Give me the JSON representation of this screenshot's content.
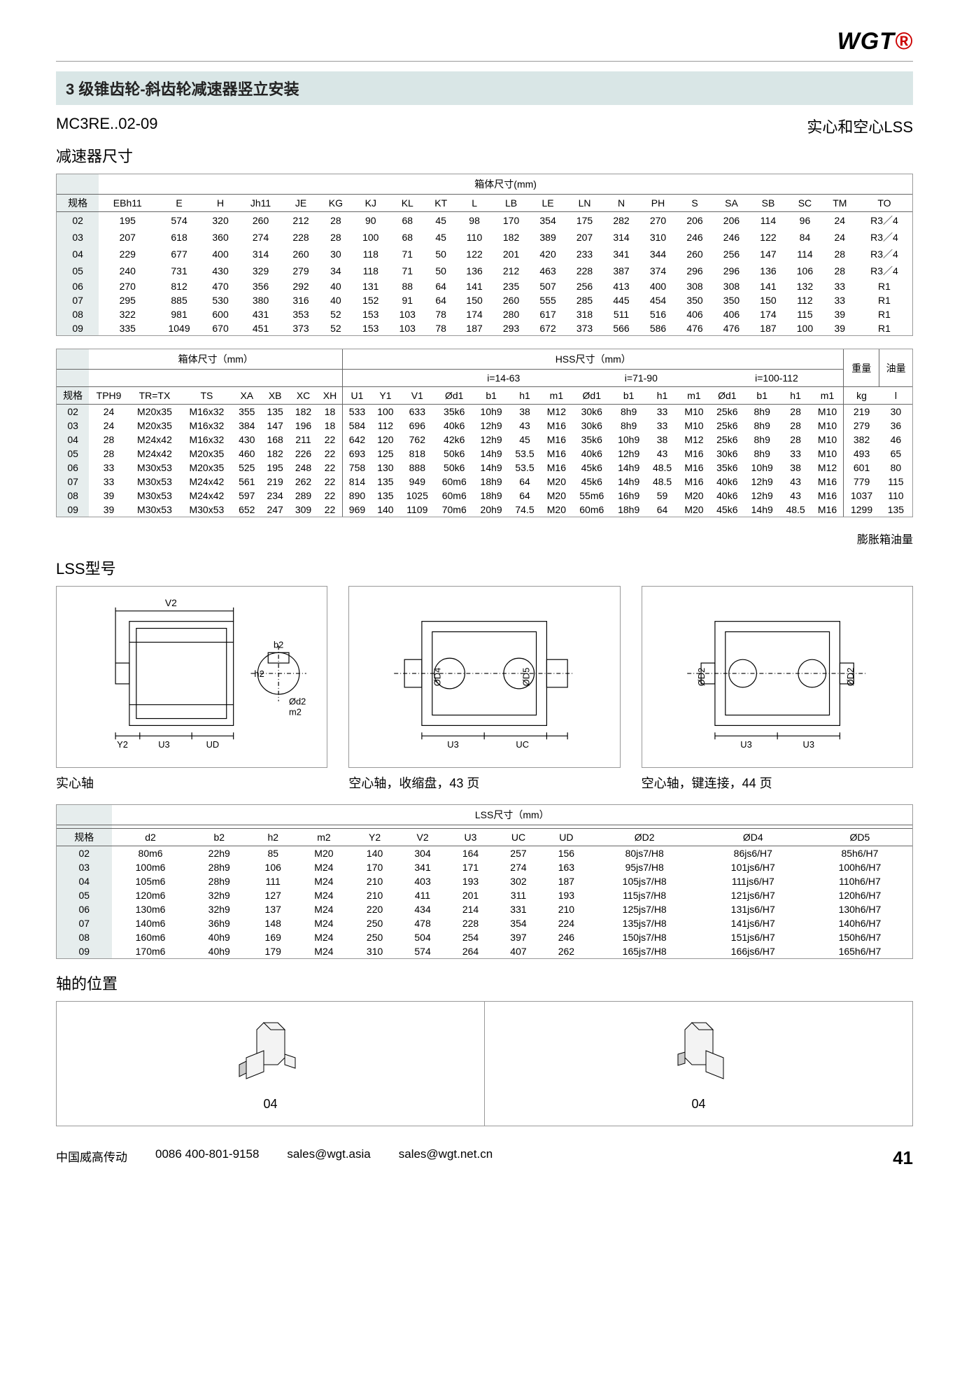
{
  "logo": {
    "main": "WGT",
    "dot": "®"
  },
  "title": "3 级锥齿轮-斜齿轮减速器竖立安装",
  "model": "MC3RE..02-09",
  "right_label": "实心和空心LSS",
  "sub_title": "减速器尺寸",
  "table1": {
    "header_center": "箱体尺寸(mm)",
    "cols": [
      "规格",
      "EBh11",
      "E",
      "H",
      "Jh11",
      "JE",
      "KG",
      "KJ",
      "KL",
      "KT",
      "L",
      "LB",
      "LE",
      "LN",
      "N",
      "PH",
      "S",
      "SA",
      "SB",
      "SC",
      "TM",
      "TO"
    ],
    "rows": [
      [
        "02",
        "195",
        "574",
        "320",
        "260",
        "212",
        "28",
        "90",
        "68",
        "45",
        "98",
        "170",
        "354",
        "175",
        "282",
        "270",
        "206",
        "206",
        "114",
        "96",
        "24",
        "R3／4"
      ],
      [
        "03",
        "207",
        "618",
        "360",
        "274",
        "228",
        "28",
        "100",
        "68",
        "45",
        "110",
        "182",
        "389",
        "207",
        "314",
        "310",
        "246",
        "246",
        "122",
        "84",
        "24",
        "R3／4"
      ],
      [
        "04",
        "229",
        "677",
        "400",
        "314",
        "260",
        "30",
        "118",
        "71",
        "50",
        "122",
        "201",
        "420",
        "233",
        "341",
        "344",
        "260",
        "256",
        "147",
        "114",
        "28",
        "R3／4"
      ],
      [
        "05",
        "240",
        "731",
        "430",
        "329",
        "279",
        "34",
        "118",
        "71",
        "50",
        "136",
        "212",
        "463",
        "228",
        "387",
        "374",
        "296",
        "296",
        "136",
        "106",
        "28",
        "R3／4"
      ],
      [
        "06",
        "270",
        "812",
        "470",
        "356",
        "292",
        "40",
        "131",
        "88",
        "64",
        "141",
        "235",
        "507",
        "256",
        "413",
        "400",
        "308",
        "308",
        "141",
        "132",
        "33",
        "R1"
      ],
      [
        "07",
        "295",
        "885",
        "530",
        "380",
        "316",
        "40",
        "152",
        "91",
        "64",
        "150",
        "260",
        "555",
        "285",
        "445",
        "454",
        "350",
        "350",
        "150",
        "112",
        "33",
        "R1"
      ],
      [
        "08",
        "322",
        "981",
        "600",
        "431",
        "353",
        "52",
        "153",
        "103",
        "78",
        "174",
        "280",
        "617",
        "318",
        "511",
        "516",
        "406",
        "406",
        "174",
        "115",
        "39",
        "R1"
      ],
      [
        "09",
        "335",
        "1049",
        "670",
        "451",
        "373",
        "52",
        "153",
        "103",
        "78",
        "187",
        "293",
        "672",
        "373",
        "566",
        "586",
        "476",
        "476",
        "187",
        "100",
        "39",
        "R1"
      ]
    ]
  },
  "table2": {
    "left_header": "箱体尺寸（mm）",
    "right_header": "HSS尺寸（mm）",
    "weight_header": "重量",
    "oil_header": "油量",
    "sub_headers": {
      "i1": "i=14-63",
      "i2": "i=71-90",
      "i3": "i=100-112"
    },
    "cols_left": [
      "规格",
      "TPH9",
      "TR=TX",
      "TS",
      "XA",
      "XB",
      "XC",
      "XH"
    ],
    "cols_mid": [
      "U1",
      "Y1",
      "V1"
    ],
    "cols_i": [
      "Ød1",
      "b1",
      "h1",
      "m1"
    ],
    "cols_right": [
      "kg",
      "l"
    ],
    "rows": [
      [
        "02",
        "24",
        "M20x35",
        "M16x32",
        "355",
        "135",
        "182",
        "18",
        "533",
        "100",
        "633",
        "35k6",
        "10h9",
        "38",
        "M12",
        "30k6",
        "8h9",
        "33",
        "M10",
        "25k6",
        "8h9",
        "28",
        "M10",
        "219",
        "30"
      ],
      [
        "03",
        "24",
        "M20x35",
        "M16x32",
        "384",
        "147",
        "196",
        "18",
        "584",
        "112",
        "696",
        "40k6",
        "12h9",
        "43",
        "M16",
        "30k6",
        "8h9",
        "33",
        "M10",
        "25k6",
        "8h9",
        "28",
        "M10",
        "279",
        "36"
      ],
      [
        "04",
        "28",
        "M24x42",
        "M16x32",
        "430",
        "168",
        "211",
        "22",
        "642",
        "120",
        "762",
        "42k6",
        "12h9",
        "45",
        "M16",
        "35k6",
        "10h9",
        "38",
        "M12",
        "25k6",
        "8h9",
        "28",
        "M10",
        "382",
        "46"
      ],
      [
        "05",
        "28",
        "M24x42",
        "M20x35",
        "460",
        "182",
        "226",
        "22",
        "693",
        "125",
        "818",
        "50k6",
        "14h9",
        "53.5",
        "M16",
        "40k6",
        "12h9",
        "43",
        "M16",
        "30k6",
        "8h9",
        "33",
        "M10",
        "493",
        "65"
      ],
      [
        "06",
        "33",
        "M30x53",
        "M20x35",
        "525",
        "195",
        "248",
        "22",
        "758",
        "130",
        "888",
        "50k6",
        "14h9",
        "53.5",
        "M16",
        "45k6",
        "14h9",
        "48.5",
        "M16",
        "35k6",
        "10h9",
        "38",
        "M12",
        "601",
        "80"
      ],
      [
        "07",
        "33",
        "M30x53",
        "M24x42",
        "561",
        "219",
        "262",
        "22",
        "814",
        "135",
        "949",
        "60m6",
        "18h9",
        "64",
        "M20",
        "45k6",
        "14h9",
        "48.5",
        "M16",
        "40k6",
        "12h9",
        "43",
        "M16",
        "779",
        "115"
      ],
      [
        "08",
        "39",
        "M30x53",
        "M24x42",
        "597",
        "234",
        "289",
        "22",
        "890",
        "135",
        "1025",
        "60m6",
        "18h9",
        "64",
        "M20",
        "55m6",
        "16h9",
        "59",
        "M20",
        "40k6",
        "12h9",
        "43",
        "M16",
        "1037",
        "110"
      ],
      [
        "09",
        "39",
        "M30x53",
        "M30x53",
        "652",
        "247",
        "309",
        "22",
        "969",
        "140",
        "1109",
        "70m6",
        "20h9",
        "74.5",
        "M20",
        "60m6",
        "18h9",
        "64",
        "M20",
        "45k6",
        "14h9",
        "48.5",
        "M16",
        "1299",
        "135"
      ]
    ],
    "note": "膨胀箱油量"
  },
  "lss_section": "LSS型号",
  "diagrams": {
    "d1": {
      "labels": [
        "V2",
        "b2",
        "h2",
        "Ød2",
        "m2",
        "Y2",
        "U3",
        "UD"
      ],
      "cap": "实心轴"
    },
    "d2": {
      "labels": [
        "ØD4",
        "ØD5",
        "U3",
        "UC"
      ],
      "cap": "空心轴，收缩盘，43 页"
    },
    "d3": {
      "labels": [
        "ØD2",
        "ØD2",
        "U3",
        "U3"
      ],
      "cap": "空心轴，键连接，44 页"
    }
  },
  "table3": {
    "header_center": "LSS尺寸（mm）",
    "cols": [
      "规格",
      "d2",
      "b2",
      "h2",
      "m2",
      "Y2",
      "V2",
      "U3",
      "UC",
      "UD",
      "ØD2",
      "ØD4",
      "ØD5"
    ],
    "rows": [
      [
        "02",
        "80m6",
        "22h9",
        "85",
        "M20",
        "140",
        "304",
        "164",
        "257",
        "156",
        "80js7/H8",
        "86js6/H7",
        "85h6/H7"
      ],
      [
        "03",
        "100m6",
        "28h9",
        "106",
        "M24",
        "170",
        "341",
        "171",
        "274",
        "163",
        "95js7/H8",
        "101js6/H7",
        "100h6/H7"
      ],
      [
        "04",
        "105m6",
        "28h9",
        "111",
        "M24",
        "210",
        "403",
        "193",
        "302",
        "187",
        "105js7/H8",
        "111js6/H7",
        "110h6/H7"
      ],
      [
        "05",
        "120m6",
        "32h9",
        "127",
        "M24",
        "210",
        "411",
        "201",
        "311",
        "193",
        "115js7/H8",
        "121js6/H7",
        "120h6/H7"
      ],
      [
        "06",
        "130m6",
        "32h9",
        "137",
        "M24",
        "220",
        "434",
        "214",
        "331",
        "210",
        "125js7/H8",
        "131js6/H7",
        "130h6/H7"
      ],
      [
        "07",
        "140m6",
        "36h9",
        "148",
        "M24",
        "250",
        "478",
        "228",
        "354",
        "224",
        "135js7/H8",
        "141js6/H7",
        "140h6/H7"
      ],
      [
        "08",
        "160m6",
        "40h9",
        "169",
        "M24",
        "250",
        "504",
        "254",
        "397",
        "246",
        "150js7/H8",
        "151js6/H7",
        "150h6/H7"
      ],
      [
        "09",
        "170m6",
        "40h9",
        "179",
        "M24",
        "310",
        "574",
        "264",
        "407",
        "262",
        "165js7/H8",
        "166js6/H7",
        "165h6/H7"
      ]
    ]
  },
  "shaft_section": "轴的位置",
  "shaft_num": "04",
  "footer": {
    "company": "中国威高传动",
    "phone": "0086 400-801-9158",
    "email1": "sales@wgt.asia",
    "email2": "sales@wgt.net.cn",
    "page": "41"
  }
}
